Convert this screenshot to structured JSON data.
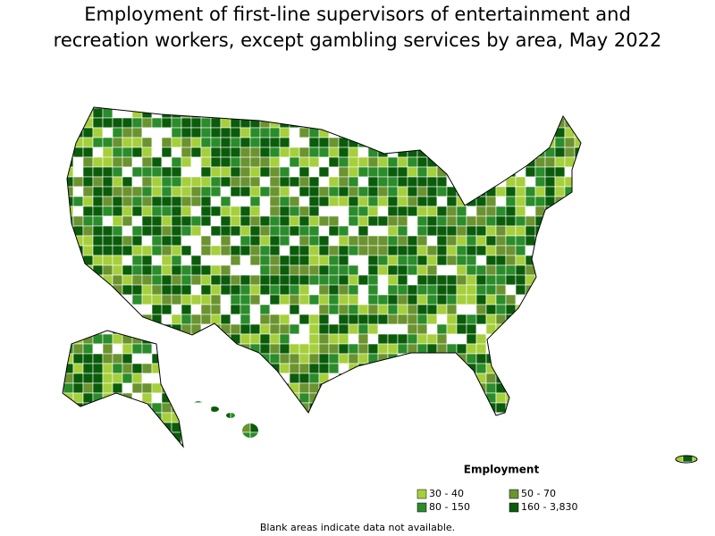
{
  "title": "Employment of first-line supervisors of entertainment and recreation workers, except gambling services by area, May 2022",
  "legend": {
    "title": "Employment",
    "items": [
      {
        "label": "30 - 40",
        "color": "#a6cf3c"
      },
      {
        "label": "50 - 70",
        "color": "#6b9330"
      },
      {
        "label": "80 - 150",
        "color": "#2a8c2a"
      },
      {
        "label": "160 - 3,830",
        "color": "#0a5c0a"
      }
    ]
  },
  "footnote": "Blank areas indicate data not available."
}
